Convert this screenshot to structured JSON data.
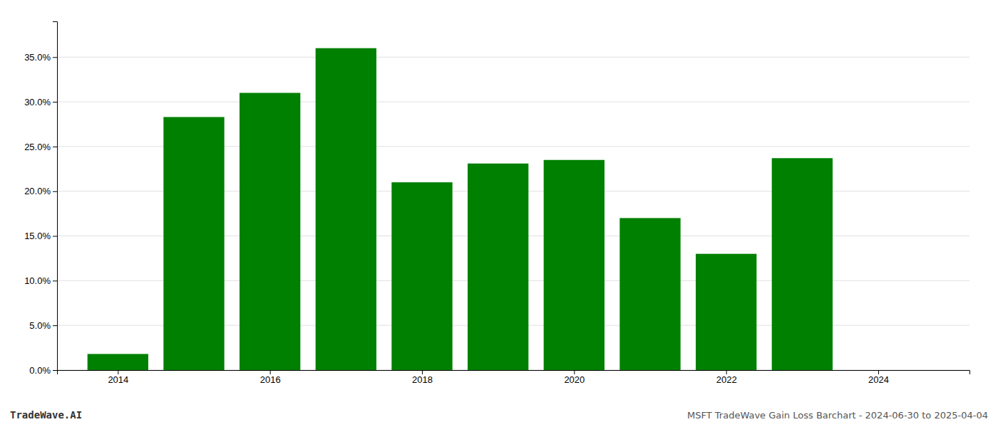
{
  "chart_data": {
    "type": "bar",
    "title": "MSFT TradeWave Gain Loss Barchart - 2024-06-30 to 2025-04-04",
    "annotations": [
      "TradeWave.AI"
    ],
    "x": [
      2014,
      2015,
      2016,
      2017,
      2018,
      2019,
      2020,
      2021,
      2022,
      2023,
      2024
    ],
    "values": [
      0.018,
      0.283,
      0.31,
      0.36,
      0.21,
      0.231,
      0.235,
      0.17,
      0.13,
      0.237,
      0.0
    ],
    "color": "#008000",
    "xlim": [
      2013.2,
      2025.2
    ],
    "xticks": [
      2014,
      2016,
      2018,
      2020,
      2022,
      2024
    ],
    "ylim": [
      0,
      0.39
    ],
    "yticks": [
      {
        "value": 0.0,
        "label": "0.0%"
      },
      {
        "value": 0.05,
        "label": "5.0%"
      },
      {
        "value": 0.1,
        "label": "10.0%"
      },
      {
        "value": 0.15,
        "label": "15.0%"
      },
      {
        "value": 0.2,
        "label": "20.0%"
      },
      {
        "value": 0.25,
        "label": "25.0%"
      },
      {
        "value": 0.3,
        "label": "30.0%"
      },
      {
        "value": 0.35,
        "label": "35.0%"
      }
    ],
    "grid": true
  }
}
